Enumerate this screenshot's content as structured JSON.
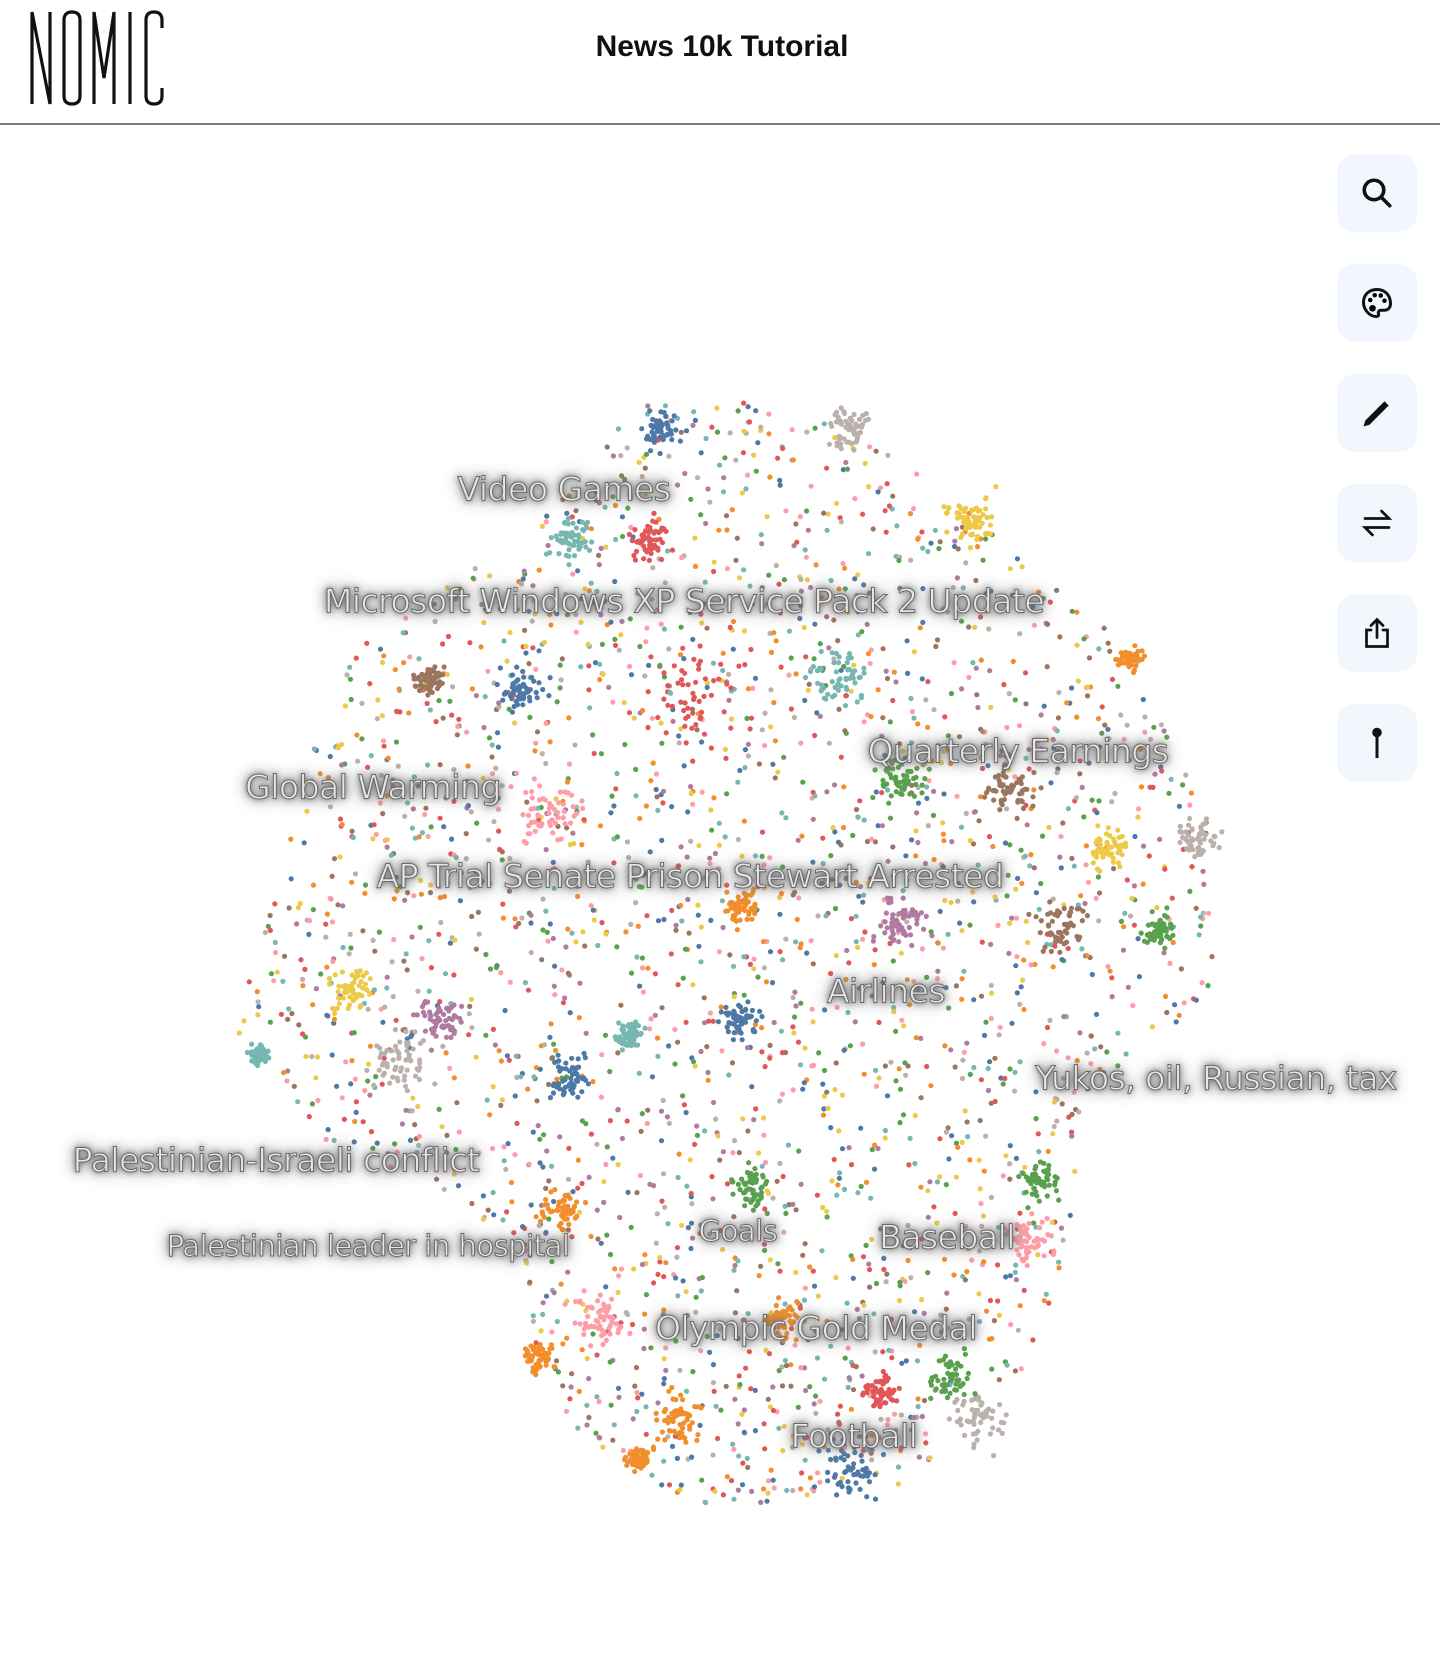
{
  "header": {
    "logo_text": "NOMIC",
    "title": "News 10k Tutorial"
  },
  "toolbar": [
    {
      "icon": "search-icon",
      "label": "search"
    },
    {
      "icon": "palette-icon",
      "label": "color"
    },
    {
      "icon": "pencil-icon",
      "label": "annotate"
    },
    {
      "icon": "swap-icon",
      "label": "swap"
    },
    {
      "icon": "share-icon",
      "label": "share"
    },
    {
      "icon": "pin-icon",
      "label": "pin"
    }
  ],
  "map": {
    "topic_labels": [
      "Video Games",
      "Microsoft Windows XP Service Pack 2 Update",
      "Quarterly Earnings",
      "Global Warming",
      "AP Trial Senate Prison Stewart Arrested",
      "Airlines",
      "Yukos, oil, Russian, tax",
      "Palestinian-Israeli conflict",
      "Palestinian leader in hospital",
      "Goals",
      "Baseball",
      "Olympic Gold Medal",
      "Football"
    ],
    "palette": [
      "#4e79a7",
      "#f28e2b",
      "#e15759",
      "#76b7b2",
      "#59a14f",
      "#edc948",
      "#b07aa1",
      "#ff9da7",
      "#9c755f",
      "#bab0ac"
    ]
  }
}
